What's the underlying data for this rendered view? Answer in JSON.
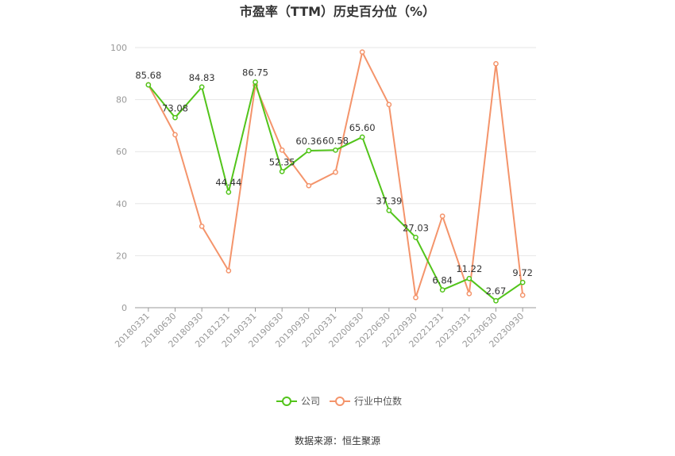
{
  "chart_data": {
    "type": "line",
    "title": "市盈率（TTM）历史百分位（%）",
    "categories": [
      "20180331",
      "20180630",
      "20180930",
      "20181231",
      "20190331",
      "20190630",
      "20190930",
      "20200331",
      "20200630",
      "20220630",
      "20220930",
      "20221231",
      "20230331",
      "20230630",
      "20230930"
    ],
    "series": [
      {
        "name": "公司",
        "color": "#52c41a",
        "values": [
          85.68,
          73.08,
          84.83,
          44.44,
          86.75,
          52.35,
          60.36,
          60.58,
          65.6,
          37.39,
          27.03,
          6.84,
          11.22,
          2.67,
          9.72
        ],
        "labels": [
          "85.68",
          "73.08",
          "84.83",
          "44.44",
          "86.75",
          "52.35",
          "60.36",
          "60.58",
          "65.60",
          "37.39",
          "27.03",
          "6.84",
          "11.22",
          "2.67",
          "9.72"
        ]
      },
      {
        "name": "行业中位数",
        "color": "#f4946b",
        "values": [
          85.7,
          66.5,
          31.3,
          14.2,
          85.5,
          60.6,
          46.9,
          52.1,
          98.3,
          78.1,
          3.9,
          35.2,
          5.4,
          93.8,
          4.8
        ]
      }
    ],
    "y_ticks": [
      "0",
      "20",
      "40",
      "60",
      "80",
      "100"
    ],
    "ylim": [
      0,
      100
    ],
    "grid": true,
    "legend_position": "bottom"
  },
  "source": "数据来源：恒生聚源"
}
